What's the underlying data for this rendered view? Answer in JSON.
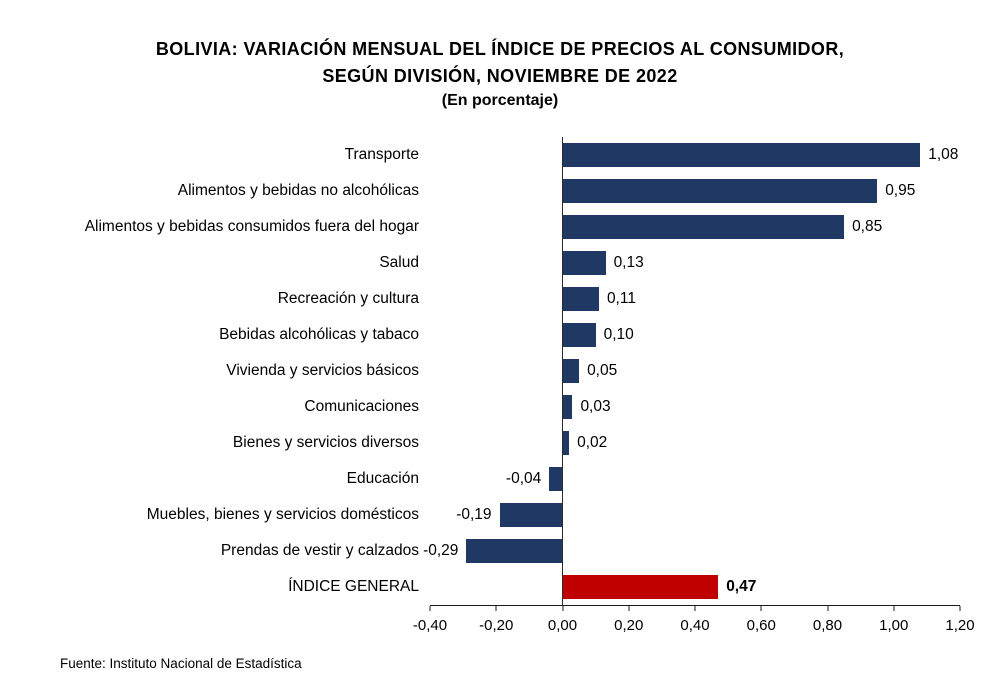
{
  "title": {
    "line1": "BOLIVIA: VARIACIÓN MENSUAL DEL ÍNDICE DE PRECIOS AL CONSUMIDOR,",
    "line2": "SEGÚN DIVISIÓN, NOVIEMBRE DE 2022",
    "subtitle": "(En porcentaje)"
  },
  "footer": "Fuente: Instituto Nacional de Estadística",
  "colors": {
    "bar": "#1F3864",
    "highlight": "#C00000",
    "axis": "#1a1a1a"
  },
  "chart_data": {
    "type": "bar",
    "orientation": "horizontal",
    "title": "BOLIVIA: VARIACIÓN MENSUAL DEL ÍNDICE DE PRECIOS AL CONSUMIDOR, SEGÚN DIVISIÓN, NOVIEMBRE DE 2022",
    "subtitle": "(En porcentaje)",
    "xlabel": "",
    "ylabel": "",
    "xlim": [
      -0.4,
      1.2
    ],
    "grid": false,
    "legend": false,
    "xticks": [
      -0.4,
      -0.2,
      0.0,
      0.2,
      0.4,
      0.6,
      0.8,
      1.0,
      1.2
    ],
    "xtick_labels": [
      "-0,40",
      "-0,20",
      "0,00",
      "0,20",
      "0,40",
      "0,60",
      "0,80",
      "1,00",
      "1,20"
    ],
    "rows": [
      {
        "label": "Transporte",
        "value": 1.08,
        "display": "1,08",
        "highlight": false
      },
      {
        "label": "Alimentos y bebidas no alcohólicas",
        "value": 0.95,
        "display": "0,95",
        "highlight": false
      },
      {
        "label": "Alimentos y bebidas consumidos fuera del hogar",
        "value": 0.85,
        "display": "0,85",
        "highlight": false
      },
      {
        "label": "Salud",
        "value": 0.13,
        "display": "0,13",
        "highlight": false
      },
      {
        "label": "Recreación y cultura",
        "value": 0.11,
        "display": "0,11",
        "highlight": false
      },
      {
        "label": "Bebidas alcohólicas y tabaco",
        "value": 0.1,
        "display": "0,10",
        "highlight": false
      },
      {
        "label": "Vivienda y servicios básicos",
        "value": 0.05,
        "display": "0,05",
        "highlight": false
      },
      {
        "label": "Comunicaciones",
        "value": 0.03,
        "display": "0,03",
        "highlight": false
      },
      {
        "label": "Bienes y servicios diversos",
        "value": 0.02,
        "display": "0,02",
        "highlight": false
      },
      {
        "label": "Educación",
        "value": -0.04,
        "display": "-0,04",
        "highlight": false
      },
      {
        "label": "Muebles, bienes y servicios domésticos",
        "value": -0.19,
        "display": "-0,19",
        "highlight": false
      },
      {
        "label": "Prendas de vestir y calzados",
        "value": -0.29,
        "display": "-0,29",
        "highlight": false
      },
      {
        "label": "ÍNDICE GENERAL",
        "value": 0.47,
        "display": "0,47",
        "highlight": true
      }
    ]
  }
}
